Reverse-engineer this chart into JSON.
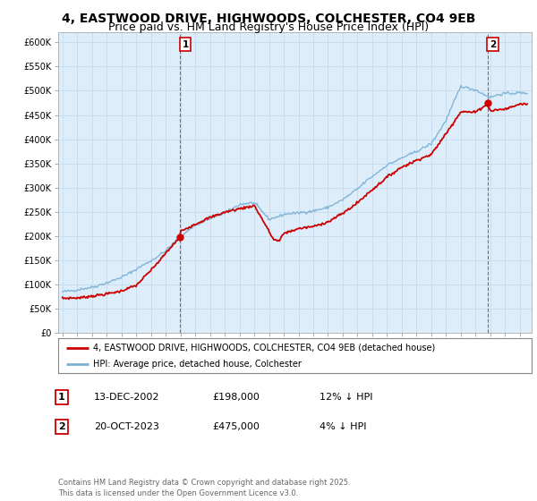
{
  "title": "4, EASTWOOD DRIVE, HIGHWOODS, COLCHESTER, CO4 9EB",
  "subtitle": "Price paid vs. HM Land Registry's House Price Index (HPI)",
  "ylabel_ticks": [
    "£0",
    "£50K",
    "£100K",
    "£150K",
    "£200K",
    "£250K",
    "£300K",
    "£350K",
    "£400K",
    "£450K",
    "£500K",
    "£550K",
    "£600K"
  ],
  "ylim": [
    0,
    620000
  ],
  "xlim_start": 1994.7,
  "xlim_end": 2026.8,
  "marker1_year": 2002.96,
  "marker1_price": 198000,
  "marker1_label": "1",
  "marker2_year": 2023.8,
  "marker2_price": 475000,
  "marker2_label": "2",
  "sale_color": "#cc0000",
  "hpi_color": "#7bafd4",
  "grid_color": "#c8ddf0",
  "bg_color": "#e8f2fb",
  "plot_bg": "#ddeefa",
  "legend1_text": "4, EASTWOOD DRIVE, HIGHWOODS, COLCHESTER, CO4 9EB (detached house)",
  "legend2_text": "HPI: Average price, detached house, Colchester",
  "ann1_date": "13-DEC-2002",
  "ann1_price": "£198,000",
  "ann1_hpi": "12% ↓ HPI",
  "ann2_date": "20-OCT-2023",
  "ann2_price": "£475,000",
  "ann2_hpi": "4% ↓ HPI",
  "footer": "Contains HM Land Registry data © Crown copyright and database right 2025.\nThis data is licensed under the Open Government Licence v3.0.",
  "title_fontsize": 10,
  "subtitle_fontsize": 9,
  "hpi_key_years": [
    1995,
    1996,
    1997,
    1998,
    1999,
    2000,
    2001,
    2002,
    2003,
    2004,
    2005,
    2006,
    2007,
    2008,
    2009,
    2010,
    2011,
    2012,
    2013,
    2014,
    2015,
    2016,
    2017,
    2018,
    2019,
    2020,
    2021,
    2022,
    2023,
    2024,
    2025,
    2026
  ],
  "hpi_key_vals": [
    85000,
    90000,
    97000,
    107000,
    118000,
    135000,
    152000,
    172000,
    200000,
    225000,
    238000,
    250000,
    268000,
    272000,
    238000,
    248000,
    253000,
    255000,
    262000,
    278000,
    300000,
    325000,
    348000,
    362000,
    375000,
    388000,
    435000,
    505000,
    498000,
    482000,
    490000,
    492000
  ],
  "prop_key_years": [
    1995,
    1996,
    1997,
    1998,
    1999,
    2000,
    2001,
    2002,
    2002.96,
    2003,
    2004,
    2005,
    2006,
    2007,
    2008,
    2009.3,
    2009.7,
    2010,
    2011,
    2012,
    2013,
    2014,
    2015,
    2016,
    2017,
    2018,
    2019,
    2020,
    2021,
    2022,
    2023,
    2023.8,
    2024,
    2025,
    2026
  ],
  "prop_key_vals": [
    72000,
    74000,
    78000,
    83000,
    90000,
    100000,
    130000,
    165000,
    198000,
    210000,
    225000,
    238000,
    250000,
    258000,
    265000,
    195000,
    192000,
    208000,
    218000,
    222000,
    232000,
    250000,
    272000,
    300000,
    325000,
    345000,
    360000,
    372000,
    415000,
    460000,
    458000,
    475000,
    460000,
    463000,
    472000
  ]
}
